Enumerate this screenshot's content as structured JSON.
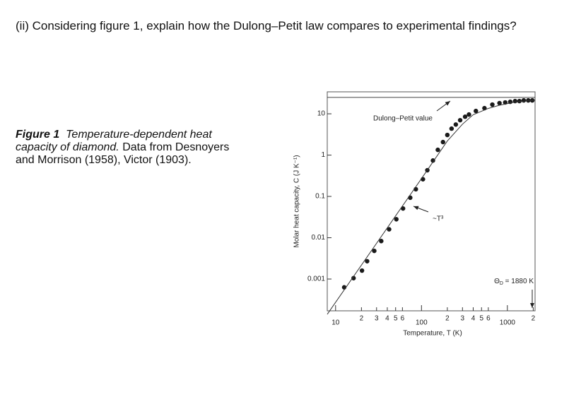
{
  "question": "(ii) Considering figure 1, explain how the Dulong–Petit law compares to experimental findings?",
  "figure_caption": {
    "label": "Figure 1",
    "title": "Temperature-dependent heat capacity of diamond.",
    "text": "Data from Desnoyers and Morrison (1958), Victor (1903)."
  },
  "chart_data": {
    "type": "scatter",
    "x_label": "Temperature, T (K)",
    "y_label": "Molar heat capacity, C (J K⁻¹)",
    "log_x": true,
    "log_y": true,
    "xlim": [
      8,
      2100
    ],
    "ylim": [
      0.00017,
      34
    ],
    "xticks": [
      {
        "value": 10,
        "label": "10"
      },
      {
        "value": 20,
        "label": "2"
      },
      {
        "value": 30,
        "label": "3"
      },
      {
        "value": 40,
        "label": "4"
      },
      {
        "value": 50,
        "label": "5"
      },
      {
        "value": 60,
        "label": "6"
      },
      {
        "value": 100,
        "label": "100"
      },
      {
        "value": 200,
        "label": "2"
      },
      {
        "value": 300,
        "label": "3"
      },
      {
        "value": 400,
        "label": "4"
      },
      {
        "value": 500,
        "label": "5"
      },
      {
        "value": 600,
        "label": "6"
      },
      {
        "value": 1000,
        "label": "1000"
      },
      {
        "value": 2000,
        "label": "2"
      }
    ],
    "yticks": [
      0.001,
      0.01,
      0.1,
      1,
      10
    ],
    "series": [
      {
        "color": "#1a1a1a",
        "x": [
          12.6,
          16.2,
          20.3,
          23.3,
          28.2,
          34,
          42,
          51,
          61,
          74,
          86,
          104,
          117,
          136,
          155,
          178,
          200,
          224,
          251,
          282,
          322,
          357,
          430,
          541,
          668,
          809,
          944,
          1080,
          1230,
          1380,
          1550,
          1750,
          1950
        ],
        "values": [
          0.00063,
          0.00105,
          0.0016,
          0.0027,
          0.0048,
          0.0083,
          0.016,
          0.028,
          0.051,
          0.093,
          0.149,
          0.26,
          0.43,
          0.74,
          1.34,
          2.07,
          3.07,
          4.37,
          5.5,
          7.0,
          8.5,
          9.6,
          11.7,
          13.7,
          16.7,
          18.1,
          18.8,
          19.5,
          20.3,
          20.3,
          21.1,
          21.1,
          21.1
        ]
      },
      {
        "type": "line",
        "color": "#333333",
        "x": [
          8,
          100,
          200,
          300,
          400,
          600,
          800,
          1200,
          2100
        ],
        "values": [
          0.00014,
          0.27,
          2.2,
          5.6,
          9.5,
          13.5,
          16,
          19,
          21.5
        ]
      }
    ],
    "dulong_petit_value": 24.9,
    "annotations": {
      "dulong_petit": "Dulong–Petit value",
      "t_cubed": "~T³",
      "debye": {
        "symbol": "Θ",
        "sub": "D",
        "text": " = 1880 K"
      }
    }
  }
}
